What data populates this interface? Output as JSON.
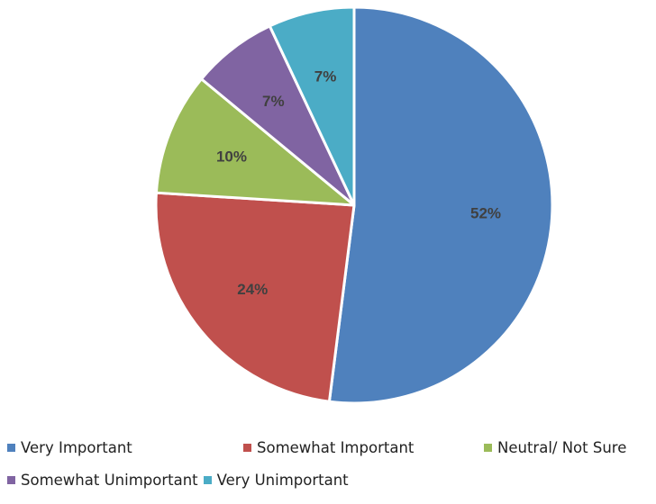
{
  "chart_data": {
    "type": "pie",
    "title": "",
    "start_angle_deg": 0,
    "direction": "clockwise",
    "legend_position": "bottom",
    "slices": [
      {
        "name": "Very  Important",
        "value": 52,
        "label": "52%",
        "color": "#4F81BD"
      },
      {
        "name": "Somewhat Important",
        "value": 24,
        "label": "24%",
        "color": "#C0504D"
      },
      {
        "name": "Neutral/ Not Sure",
        "value": 10,
        "label": "10%",
        "color": "#9BBB59"
      },
      {
        "name": "Somewhat Unimportant",
        "value": 7,
        "label": "7%",
        "color": "#8064A2"
      },
      {
        "name": "Very Unimportant",
        "value": 7,
        "label": "7%",
        "color": "#4BACC6"
      }
    ]
  }
}
